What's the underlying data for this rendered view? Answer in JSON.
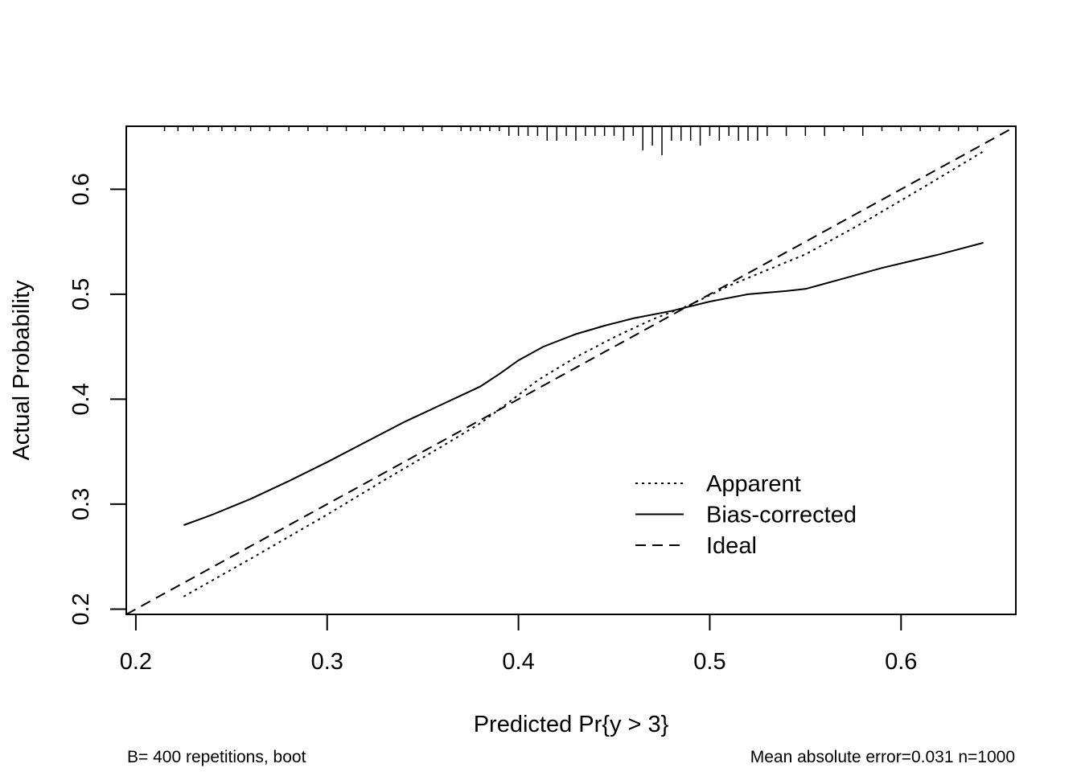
{
  "chart_data": {
    "type": "line",
    "title": "",
    "xlabel": "Predicted Pr{y > 3}",
    "ylabel": "Actual Probability",
    "xlim": [
      0.195,
      0.66
    ],
    "ylim": [
      0.195,
      0.66
    ],
    "x_ticks": [
      "0.2",
      "0.3",
      "0.4",
      "0.5",
      "0.6"
    ],
    "y_ticks": [
      "0.2",
      "0.3",
      "0.4",
      "0.5",
      "0.6"
    ],
    "grid": false,
    "legend_position": "bottom-right",
    "series": [
      {
        "name": "Apparent",
        "style": "dotted",
        "x": [
          0.225,
          0.26,
          0.3,
          0.33,
          0.36,
          0.38,
          0.395,
          0.41,
          0.43,
          0.45,
          0.47,
          0.49,
          0.51,
          0.53,
          0.55,
          0.58,
          0.61,
          0.643
        ],
        "y": [
          0.212,
          0.248,
          0.29,
          0.323,
          0.355,
          0.377,
          0.397,
          0.418,
          0.44,
          0.459,
          0.476,
          0.49,
          0.508,
          0.523,
          0.538,
          0.568,
          0.6,
          0.636
        ]
      },
      {
        "name": "Bias-corrected",
        "style": "solid",
        "x": [
          0.225,
          0.24,
          0.26,
          0.28,
          0.3,
          0.32,
          0.34,
          0.36,
          0.38,
          0.39,
          0.4,
          0.413,
          0.43,
          0.445,
          0.46,
          0.48,
          0.5,
          0.52,
          0.54,
          0.55,
          0.57,
          0.59,
          0.62,
          0.643
        ],
        "y": [
          0.28,
          0.29,
          0.305,
          0.322,
          0.34,
          0.359,
          0.378,
          0.395,
          0.412,
          0.424,
          0.437,
          0.45,
          0.462,
          0.47,
          0.477,
          0.484,
          0.493,
          0.5,
          0.503,
          0.505,
          0.515,
          0.525,
          0.538,
          0.549
        ]
      },
      {
        "name": "Ideal",
        "style": "dashed",
        "x": [
          0.195,
          0.66
        ],
        "y": [
          0.195,
          0.66
        ]
      }
    ],
    "rug_x": [
      0.215,
      0.222,
      0.23,
      0.238,
      0.245,
      0.252,
      0.26,
      0.27,
      0.28,
      0.29,
      0.3,
      0.31,
      0.32,
      0.33,
      0.34,
      0.35,
      0.36,
      0.37,
      0.375,
      0.38,
      0.385,
      0.39,
      0.395,
      0.4,
      0.405,
      0.41,
      0.415,
      0.42,
      0.425,
      0.43,
      0.435,
      0.44,
      0.445,
      0.45,
      0.455,
      0.46,
      0.465,
      0.47,
      0.475,
      0.48,
      0.485,
      0.49,
      0.495,
      0.5,
      0.505,
      0.51,
      0.515,
      0.52,
      0.525,
      0.53,
      0.54,
      0.55,
      0.56,
      0.57,
      0.58,
      0.59,
      0.6,
      0.61,
      0.62,
      0.63,
      0.64
    ],
    "rug_counts": [
      1,
      1,
      1,
      1,
      1,
      1,
      1,
      1,
      1,
      1,
      1,
      1,
      1,
      1,
      1,
      1,
      1,
      1,
      1,
      1,
      1,
      1,
      2,
      2,
      2,
      2,
      3,
      3,
      2,
      3,
      2,
      2,
      2,
      2,
      3,
      2,
      5,
      4,
      6,
      3,
      3,
      3,
      4,
      2,
      3,
      2,
      3,
      3,
      3,
      2,
      2,
      2,
      2,
      1,
      2,
      1,
      1,
      1,
      1,
      1,
      1
    ],
    "footnote_left": "B= 400 repetitions, boot",
    "footnote_right": "Mean absolute error=0.031 n=1000"
  }
}
